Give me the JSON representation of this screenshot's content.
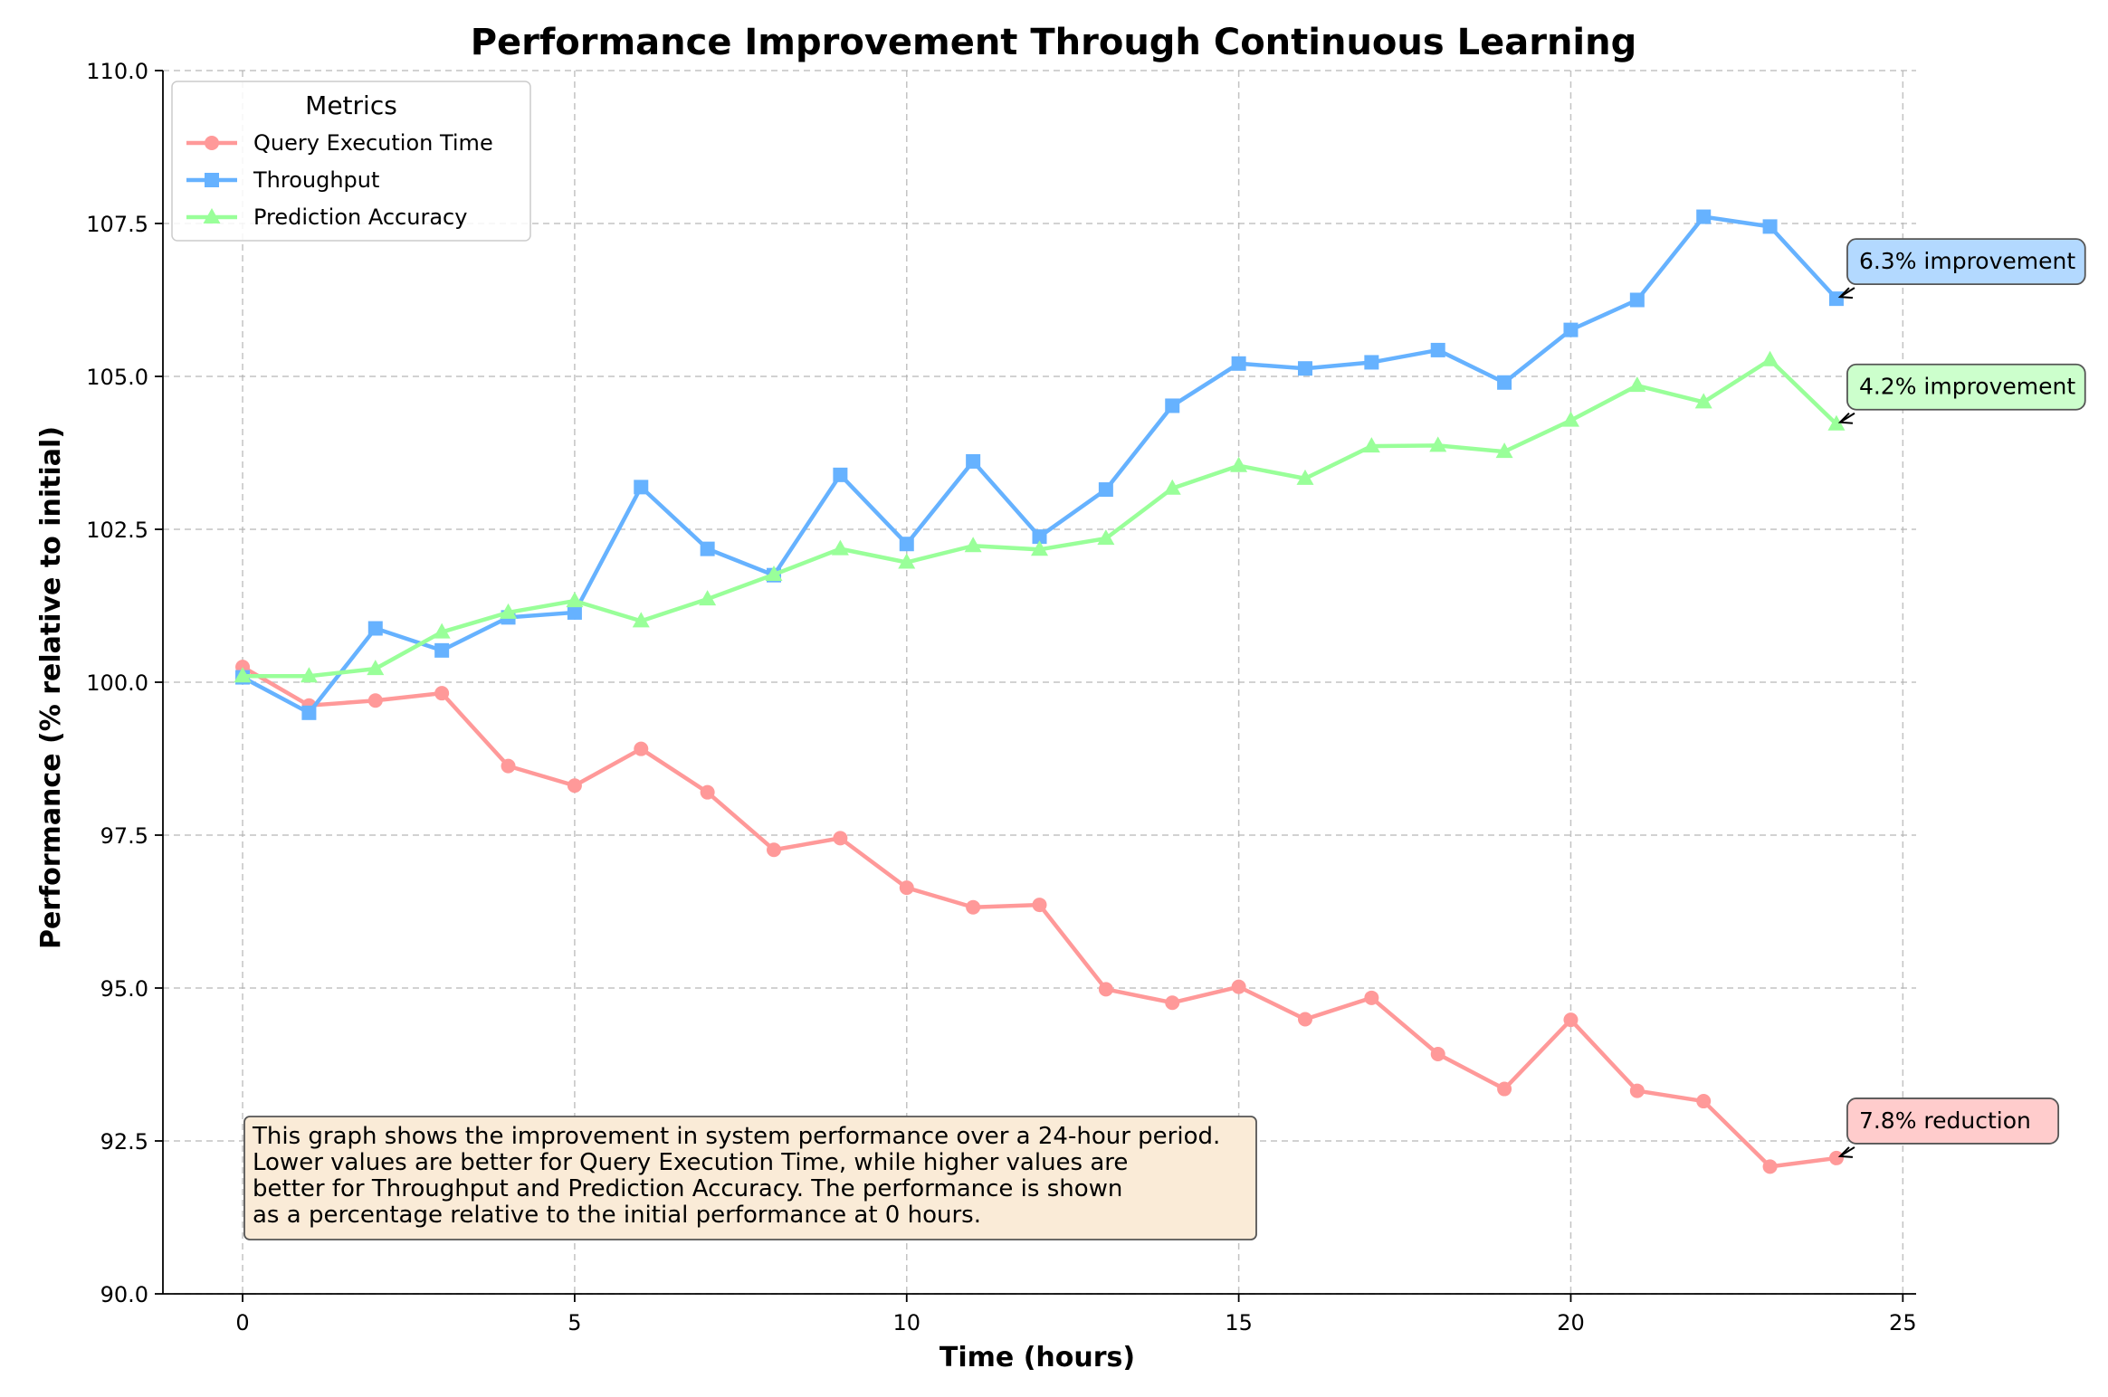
{
  "chart_data": {
    "type": "line",
    "title": "Performance Improvement Through Continuous Learning",
    "xlabel": "Time (hours)",
    "ylabel": "Performance (% relative to initial)",
    "xlim": [
      -1.2,
      25.2
    ],
    "ylim": [
      90,
      110
    ],
    "xticks": [
      0,
      5,
      10,
      15,
      20,
      25
    ],
    "yticks": [
      90.0,
      92.5,
      95.0,
      97.5,
      100.0,
      102.5,
      105.0,
      107.5,
      110.0
    ],
    "grid": true,
    "x": [
      0,
      1,
      2,
      3,
      4,
      5,
      6,
      7,
      8,
      9,
      10,
      11,
      12,
      13,
      14,
      15,
      16,
      17,
      18,
      19,
      20,
      21,
      22,
      23,
      24
    ],
    "series": [
      {
        "name": "Query Execution Time",
        "color": "#FF9999",
        "marker": "circle",
        "values": [
          100.25,
          99.62,
          99.7,
          99.82,
          98.63,
          98.31,
          98.91,
          98.2,
          97.26,
          97.45,
          96.64,
          96.32,
          96.36,
          94.98,
          94.76,
          95.02,
          94.49,
          94.84,
          93.92,
          93.35,
          94.48,
          93.32,
          93.15,
          92.08,
          92.22
        ]
      },
      {
        "name": "Throughput",
        "color": "#66B2FF",
        "marker": "square",
        "values": [
          100.08,
          99.5,
          100.88,
          100.52,
          101.06,
          101.14,
          103.19,
          102.18,
          101.75,
          103.39,
          102.26,
          103.61,
          102.38,
          103.15,
          104.52,
          105.21,
          105.13,
          105.23,
          105.43,
          104.9,
          105.76,
          106.25,
          107.61,
          107.45,
          106.27
        ]
      },
      {
        "name": "Prediction Accuracy",
        "color": "#99FF99",
        "marker": "triangle",
        "values": [
          100.1,
          100.1,
          100.22,
          100.82,
          101.14,
          101.33,
          101.0,
          101.36,
          101.76,
          102.18,
          101.96,
          102.23,
          102.17,
          102.35,
          103.17,
          103.54,
          103.33,
          103.86,
          103.87,
          103.77,
          104.28,
          104.85,
          104.58,
          105.27,
          104.22
        ]
      }
    ],
    "legend": {
      "title": "Metrics",
      "placement": "top-left",
      "entries": [
        "Query Execution Time",
        "Throughput",
        "Prediction Accuracy"
      ]
    },
    "annotations": [
      {
        "text": "6.3% improvement",
        "series": "Throughput",
        "x": 24,
        "y": 106.27,
        "bg": "#B3D9FF"
      },
      {
        "text": "4.2% improvement",
        "series": "Prediction Accuracy",
        "x": 24,
        "y": 104.22,
        "bg": "#CCFFCC"
      },
      {
        "text": "7.8% reduction",
        "series": "Query Execution Time",
        "x": 24,
        "y": 92.22,
        "bg": "#FFCCCC"
      }
    ],
    "note": {
      "lines": [
        "This graph shows the improvement in system performance over a 24-hour period.",
        "Lower values are better for Query Execution Time, while higher values are",
        "better for Throughput and Prediction Accuracy. The performance is shown",
        "as a percentage relative to the initial performance at 0 hours."
      ],
      "bg": "#FAEBD7"
    }
  }
}
